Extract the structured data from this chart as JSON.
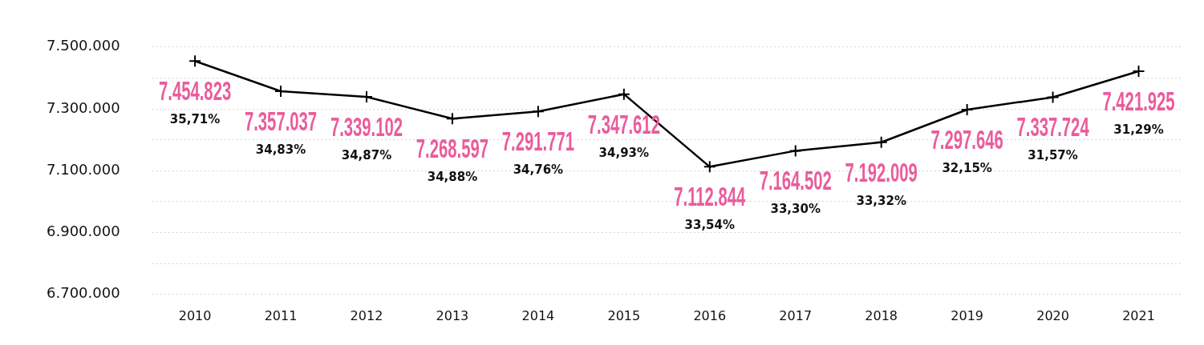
{
  "chart_data": {
    "type": "line",
    "categories": [
      "2010",
      "2011",
      "2012",
      "2013",
      "2014",
      "2015",
      "2016",
      "2017",
      "2018",
      "2019",
      "2020",
      "2021"
    ],
    "series": [
      {
        "color": "#000000",
        "values": [
          7454823,
          7357037,
          7339102,
          7268597,
          7291771,
          7347612,
          7112844,
          7164502,
          7192009,
          7297646,
          7337724,
          7421925
        ],
        "value_labels": [
          "7.454.823",
          "7.357.037",
          "7.339.102",
          "7.268.597",
          "7.291.771",
          "7.347.612",
          "7.112.844",
          "7.164.502",
          "7.192.009",
          "7.297.646",
          "7.337.724",
          "7.421.925"
        ]
      }
    ],
    "annotations": [
      "35,71%",
      "34,83%",
      "34,87%",
      "34,88%",
      "34,76%",
      "34,93%",
      "33,54%",
      "33,30%",
      "33,32%",
      "32,15%",
      "31,57%",
      "31,29%"
    ],
    "ylim": [
      6700000,
      7500000
    ],
    "yticks": [
      {
        "value": 6700000,
        "label": "6.700.000"
      },
      {
        "value": 6800000,
        "label": null
      },
      {
        "value": 6900000,
        "label": "6.900.000"
      },
      {
        "value": 7000000,
        "label": null
      },
      {
        "value": 7100000,
        "label": "7.100.000"
      },
      {
        "value": 7200000,
        "label": null
      },
      {
        "value": 7300000,
        "label": "7.300.000"
      },
      {
        "value": 7400000,
        "label": null
      },
      {
        "value": 7500000,
        "label": "7.500.000"
      }
    ],
    "grid": "y",
    "legend": false,
    "marker": "cross",
    "line_style": "solid"
  }
}
